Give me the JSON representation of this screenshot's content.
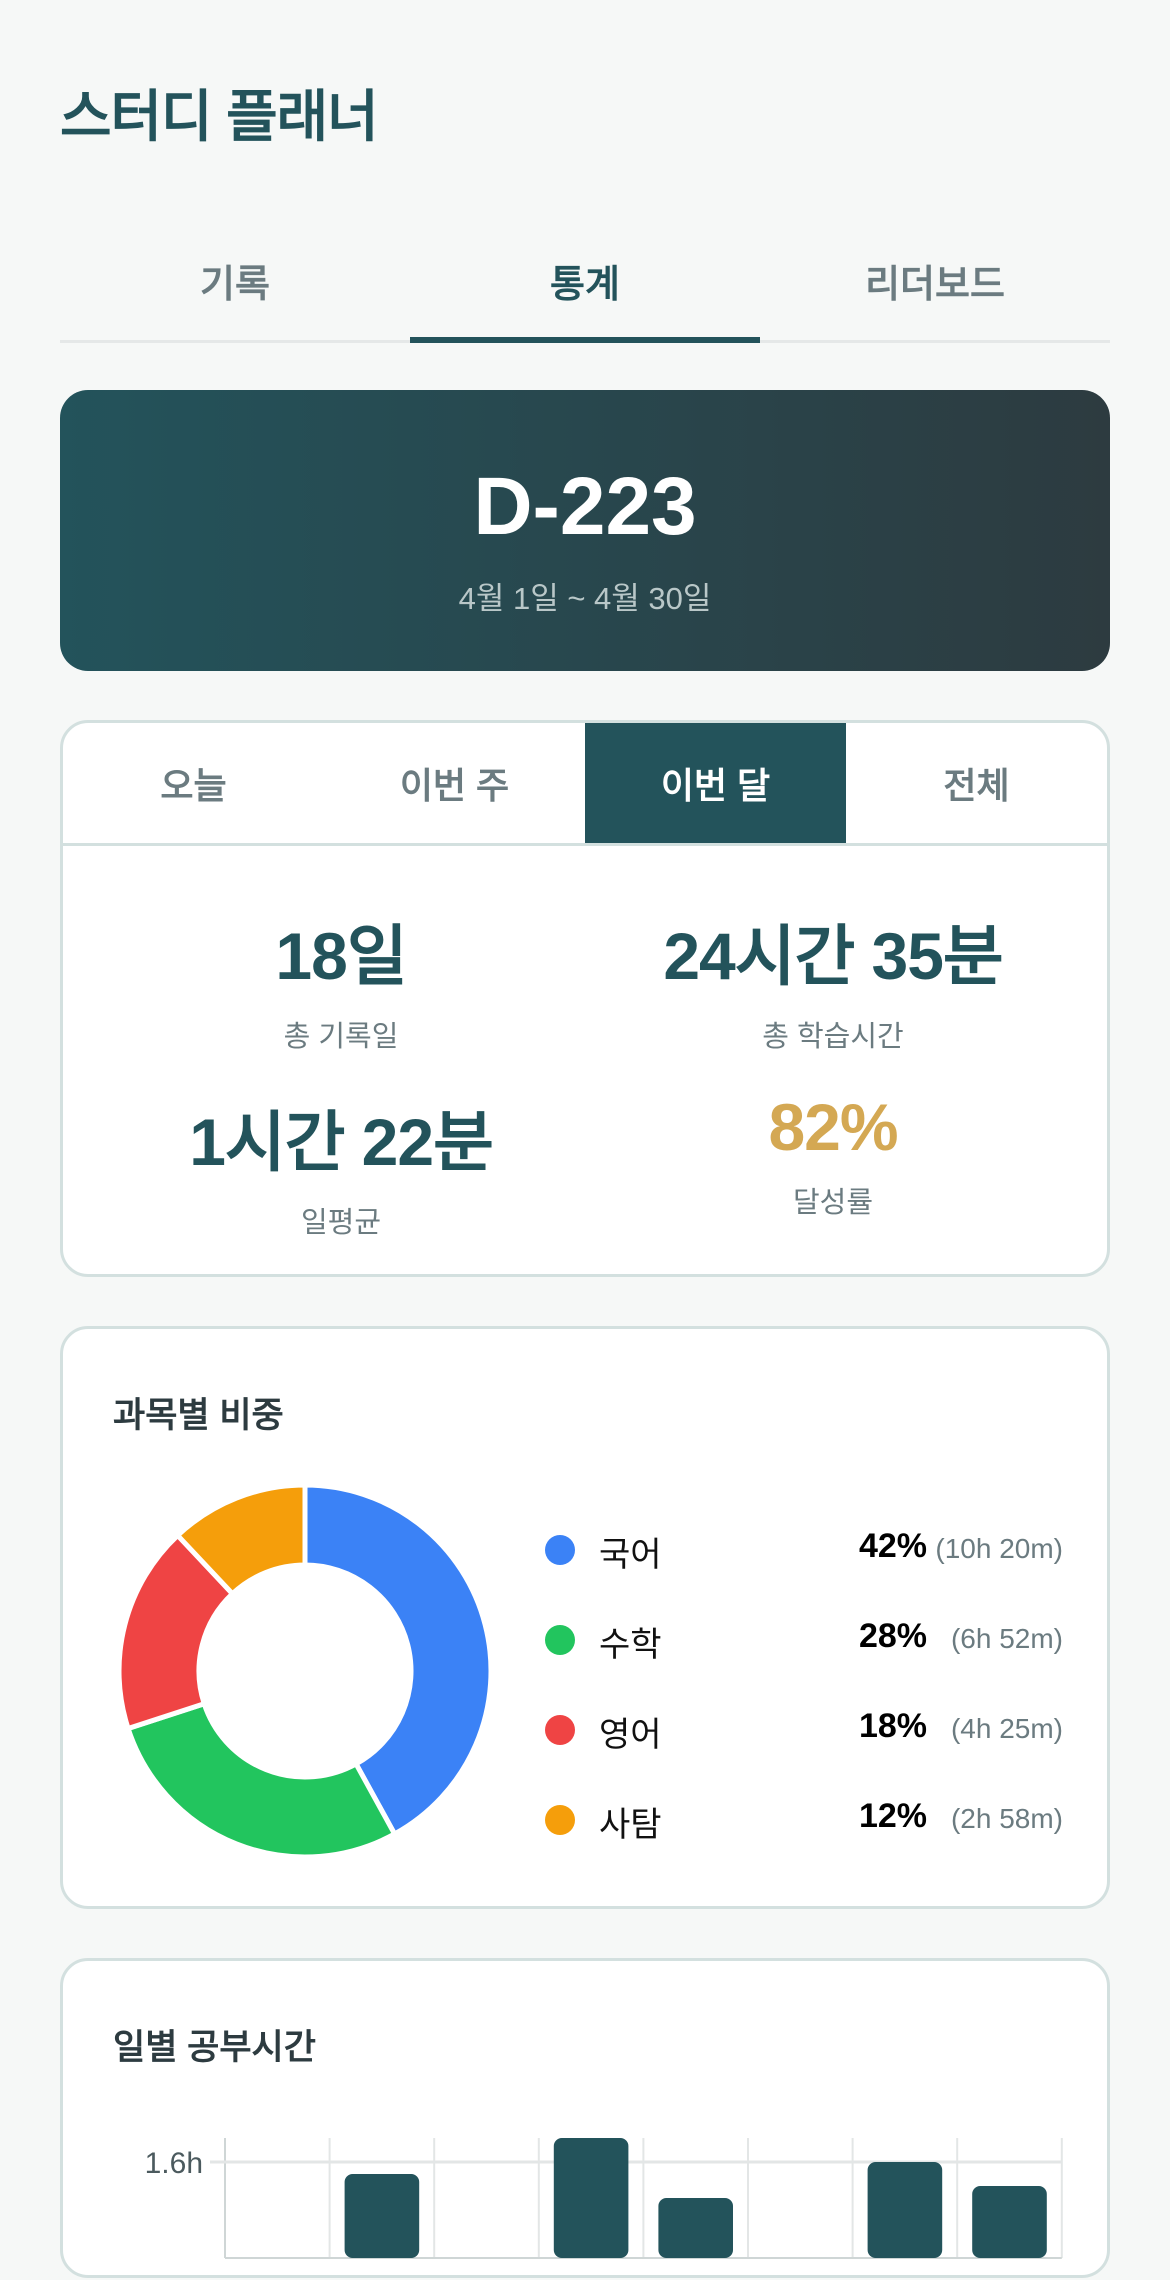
{
  "app": {
    "title": "스터디 플래너"
  },
  "nav_tabs": [
    {
      "label": "기록"
    },
    {
      "label": "통계",
      "active": true
    },
    {
      "label": "리더보드"
    }
  ],
  "dday": {
    "label": "D-223",
    "range": "4월 1일 ~ 4월 30일"
  },
  "period_tabs": [
    {
      "label": "오늘"
    },
    {
      "label": "이번 주"
    },
    {
      "label": "이번 달",
      "active": true
    },
    {
      "label": "전체"
    }
  ],
  "stats": [
    {
      "value": "18일",
      "label": "총 기록일"
    },
    {
      "value": "24시간 35분",
      "label": "총 학습시간"
    },
    {
      "value": "1시간 22분",
      "label": "일평균"
    },
    {
      "value": "82%",
      "label": "달성률"
    }
  ],
  "colors": {
    "primary": "#23535b",
    "gold": "#d4a853",
    "muted": "#6b7b80"
  },
  "chart_data": [
    {
      "type": "pie",
      "title": "과목별 비중",
      "donut": true,
      "legend": "right",
      "slices": [
        {
          "name": "국어",
          "value": 42,
          "pct": "42%",
          "time": "(10h 20m)",
          "color": "#3b82f6"
        },
        {
          "name": "수학",
          "value": 28,
          "pct": "28%",
          "time": "(6h 52m)",
          "color": "#22c55e"
        },
        {
          "name": "영어",
          "value": 18,
          "pct": "18%",
          "time": "(4h 25m)",
          "color": "#ef4444"
        },
        {
          "name": "사탐",
          "value": 12,
          "pct": "12%",
          "time": "(2h 58m)",
          "color": "#f59e0b"
        }
      ]
    },
    {
      "type": "bar",
      "title": "일별 공부시간",
      "values": [
        0,
        1.4,
        0,
        2.0,
        1.0,
        0,
        1.6,
        1.2
      ],
      "ytick_labels": [
        {
          "value": 1.6,
          "label": "1.6h"
        }
      ],
      "ylim_top": 2.0,
      "grid": true,
      "color": "#23535b"
    }
  ]
}
